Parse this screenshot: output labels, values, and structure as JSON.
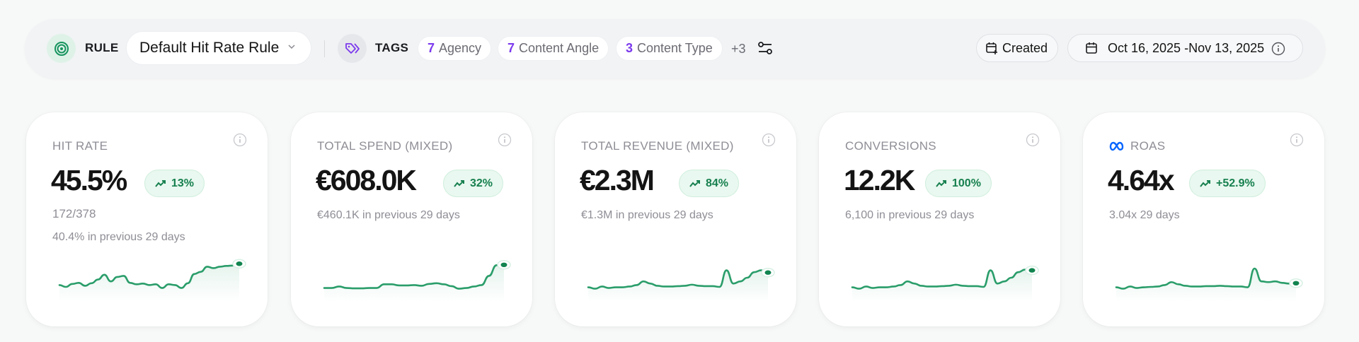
{
  "filter_bar": {
    "rule": {
      "label": "RULE",
      "icon": "target-icon",
      "selected": "Default Hit Rate Rule"
    },
    "tags": {
      "label": "TAGS",
      "icon": "tags-icon",
      "items": [
        {
          "count": "7",
          "name": "Agency"
        },
        {
          "count": "7",
          "name": "Content Angle"
        },
        {
          "count": "3",
          "name": "Content Type"
        }
      ],
      "more": "+3"
    },
    "created_label": "Created",
    "date_range": "Oct 16, 2025 -Nov 13, 2025"
  },
  "colors": {
    "accent_green": "#2a9d6a",
    "badge_text": "#17804f",
    "badge_bg": "#e9f8f0",
    "tag_count": "#7c3aed",
    "meta_blue": "#0866ff"
  },
  "cards": [
    {
      "title": "HIT RATE",
      "value": "45.5%",
      "change": "13%",
      "sub1": "172/378",
      "sub2": "40.4% in previous 29 days"
    },
    {
      "title": "TOTAL SPEND (MIXED)",
      "value": "€608.0K",
      "change": "32%",
      "sub1": "€460.1K in previous 29 days"
    },
    {
      "title": "TOTAL REVENUE (MIXED)",
      "value": "€2.3M",
      "change": "84%",
      "sub1": "€1.3M in previous 29 days"
    },
    {
      "title": "CONVERSIONS",
      "value": "12.2K",
      "change": "100%",
      "sub1": "6,100 in previous 29 days"
    },
    {
      "title": "ROAS",
      "title_icon": "meta-icon",
      "value": "4.64x",
      "change": "+52.9%",
      "sub1": "3.04x 29 days"
    }
  ],
  "chart_data": [
    {
      "type": "line",
      "title": "HIT RATE",
      "values": [
        30,
        25,
        33,
        36,
        28,
        35,
        45,
        58,
        40,
        52,
        55,
        36,
        32,
        34,
        30,
        32,
        22,
        32,
        30,
        22,
        35,
        60,
        66,
        80,
        76,
        80,
        82,
        83,
        88
      ]
    },
    {
      "type": "line",
      "title": "TOTAL SPEND (MIXED)",
      "values": [
        22,
        22,
        26,
        22,
        21,
        21,
        22,
        22,
        32,
        32,
        29,
        29,
        30,
        28,
        33,
        35,
        32,
        27,
        20,
        22,
        26,
        30,
        55,
        84,
        85
      ]
    },
    {
      "type": "line",
      "title": "TOTAL REVENUE (MIXED)",
      "values": [
        24,
        20,
        26,
        22,
        24,
        24,
        26,
        30,
        40,
        34,
        28,
        26,
        26,
        27,
        28,
        31,
        28,
        27,
        27,
        25,
        70,
        34,
        40,
        50,
        65,
        70,
        64
      ]
    },
    {
      "type": "line",
      "title": "CONVERSIONS",
      "values": [
        24,
        20,
        26,
        22,
        24,
        24,
        26,
        30,
        40,
        34,
        28,
        26,
        26,
        27,
        28,
        31,
        28,
        27,
        27,
        25,
        70,
        34,
        40,
        50,
        65,
        72,
        70
      ]
    },
    {
      "type": "line",
      "title": "ROAS",
      "values": [
        24,
        20,
        26,
        22,
        24,
        25,
        26,
        30,
        38,
        32,
        28,
        26,
        26,
        27,
        27,
        28,
        27,
        26,
        26,
        24,
        75,
        40,
        38,
        40,
        36,
        34,
        35
      ]
    }
  ]
}
